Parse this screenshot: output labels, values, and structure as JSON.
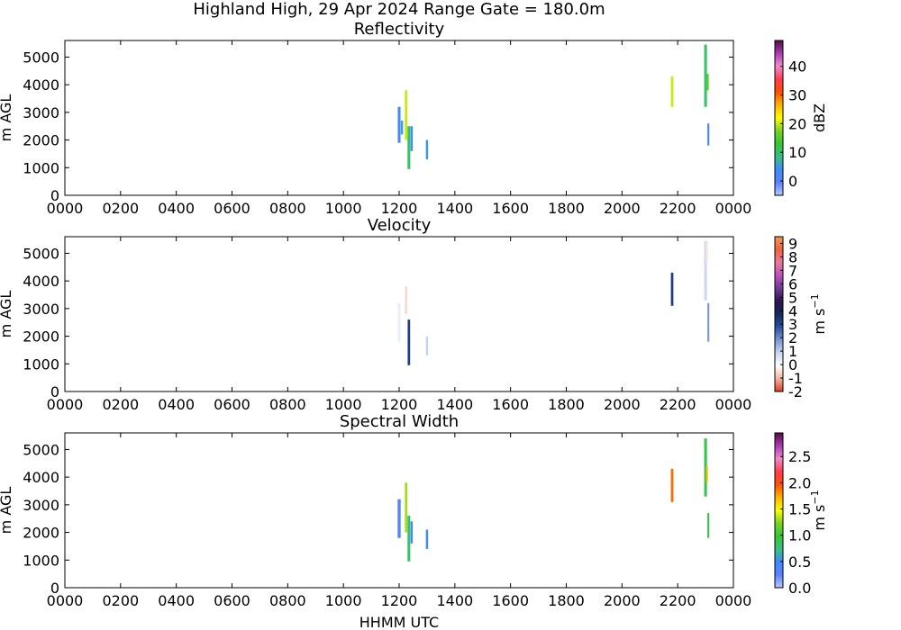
{
  "figure": {
    "title": "Highland High, 29 Apr 2024 Range Gate = 180.0m",
    "xlabel": "HHMM UTC"
  },
  "chart_data": [
    {
      "type": "heatmap",
      "title": "Reflectivity",
      "ylabel": "m AGL",
      "xlim": [
        0,
        24
      ],
      "ylim": [
        0,
        5600
      ],
      "x_ticks": [
        "0000",
        "0200",
        "0400",
        "0600",
        "0800",
        "1000",
        "1200",
        "1400",
        "1600",
        "1800",
        "2000",
        "2200",
        "0000"
      ],
      "y_ticks": [
        0,
        1000,
        2000,
        3000,
        4000,
        5000
      ],
      "colorbar": {
        "label": "dBZ",
        "range": [
          -5,
          49
        ],
        "ticks": [
          "0",
          "10",
          "20",
          "30",
          "40"
        ],
        "tick_values": [
          0,
          10,
          20,
          30,
          40
        ],
        "stops": [
          "#b4c8ff",
          "#5a82ff",
          "#3c8cff",
          "#3cbe82",
          "#32c832",
          "#78d228",
          "#ffff00",
          "#ffb400",
          "#ff5000",
          "#ff3c50",
          "#f08cc8",
          "#aa3cb4",
          "#5a0a46"
        ]
      },
      "echoes": [
        {
          "x": 12.0,
          "y0": 1900,
          "y1": 3200,
          "value": 2,
          "width": 0.1
        },
        {
          "x": 12.1,
          "y0": 2200,
          "y1": 2700,
          "value": 6,
          "width": 0.08
        },
        {
          "x": 12.25,
          "y0": 2000,
          "y1": 3800,
          "value": 20,
          "width": 0.09
        },
        {
          "x": 12.35,
          "y0": 950,
          "y1": 2500,
          "value": 10,
          "width": 0.1
        },
        {
          "x": 12.45,
          "y0": 1600,
          "y1": 2500,
          "value": 4,
          "width": 0.08
        },
        {
          "x": 13.0,
          "y0": 1300,
          "y1": 2000,
          "value": 5,
          "width": 0.08
        },
        {
          "x": 21.8,
          "y0": 3200,
          "y1": 4300,
          "value": 20,
          "width": 0.09
        },
        {
          "x": 23.0,
          "y0": 3200,
          "y1": 5450,
          "value": 10,
          "width": 0.1
        },
        {
          "x": 23.08,
          "y0": 3800,
          "y1": 4400,
          "value": 16,
          "width": 0.07
        },
        {
          "x": 23.1,
          "y0": 1800,
          "y1": 2600,
          "value": 2,
          "width": 0.07
        }
      ]
    },
    {
      "type": "heatmap",
      "title": "Velocity",
      "ylabel": "m s^-1",
      "ylabel_left": "m AGL",
      "xlim": [
        0,
        24
      ],
      "ylim": [
        0,
        5600
      ],
      "x_ticks": [
        "0000",
        "0200",
        "0400",
        "0600",
        "0800",
        "1000",
        "1200",
        "1400",
        "1600",
        "1800",
        "2000",
        "2200",
        "0000"
      ],
      "y_ticks": [
        0,
        1000,
        2000,
        3000,
        4000,
        5000
      ],
      "colorbar": {
        "label": "m s",
        "label_exponent": "−1",
        "range": [
          -2,
          9.5
        ],
        "ticks": [
          "-2",
          "-1",
          "0",
          "1",
          "2",
          "3",
          "4",
          "5",
          "6",
          "7",
          "8",
          "9"
        ],
        "tick_values": [
          -2,
          -1,
          0,
          1,
          2,
          3,
          4,
          5,
          6,
          7,
          8,
          9
        ],
        "stops": [
          "#e03c28",
          "#f5b4a0",
          "#ffffff",
          "#c8d7f0",
          "#7896d2",
          "#2850a0",
          "#14285a",
          "#2d1450",
          "#6e3c96",
          "#be50be",
          "#e678a0",
          "#f0643c",
          "#f0965a"
        ]
      },
      "echoes": [
        {
          "x": 12.0,
          "y0": 1800,
          "y1": 3200,
          "value": 0.3,
          "width": 0.1
        },
        {
          "x": 12.25,
          "y0": 2800,
          "y1": 3800,
          "value": -0.6,
          "width": 0.08
        },
        {
          "x": 12.35,
          "y0": 950,
          "y1": 2600,
          "value": 3.2,
          "width": 0.09
        },
        {
          "x": 13.0,
          "y0": 1300,
          "y1": 2000,
          "value": 0.9,
          "width": 0.08
        },
        {
          "x": 21.8,
          "y0": 3100,
          "y1": 4300,
          "value": 3.2,
          "width": 0.09
        },
        {
          "x": 23.0,
          "y0": 3300,
          "y1": 5450,
          "value": 0.8,
          "width": 0.1
        },
        {
          "x": 23.05,
          "y0": 4700,
          "y1": 5450,
          "value": -0.4,
          "width": 0.08
        },
        {
          "x": 23.1,
          "y0": 1800,
          "y1": 3200,
          "value": 1.8,
          "width": 0.07
        }
      ]
    },
    {
      "type": "heatmap",
      "title": "Spectral Width",
      "ylabel": "m s^-1",
      "ylabel_left": "m AGL",
      "xlim": [
        0,
        24
      ],
      "ylim": [
        0,
        5600
      ],
      "x_ticks": [
        "0000",
        "0200",
        "0400",
        "0600",
        "0800",
        "1000",
        "1200",
        "1400",
        "1600",
        "1800",
        "2000",
        "2200",
        "0000"
      ],
      "y_ticks": [
        0,
        1000,
        2000,
        3000,
        4000,
        5000
      ],
      "colorbar": {
        "label": "m s",
        "label_exponent": "−1",
        "range": [
          0,
          2.95
        ],
        "ticks": [
          "0.0",
          "0.5",
          "1.0",
          "1.5",
          "2.0",
          "2.5"
        ],
        "tick_values": [
          0,
          0.5,
          1.0,
          1.5,
          2.0,
          2.5
        ],
        "stops": [
          "#b4c8ff",
          "#5a82ff",
          "#3c8cff",
          "#3cbe82",
          "#32c832",
          "#78d228",
          "#ffff00",
          "#ffb400",
          "#ff5000",
          "#ff3c50",
          "#f08cc8",
          "#aa3cb4",
          "#5a0a46"
        ]
      },
      "echoes": [
        {
          "x": 12.0,
          "y0": 1800,
          "y1": 3200,
          "value": 0.3,
          "width": 0.11
        },
        {
          "x": 12.25,
          "y0": 2000,
          "y1": 3800,
          "value": 1.3,
          "width": 0.09
        },
        {
          "x": 12.35,
          "y0": 950,
          "y1": 2600,
          "value": 0.8,
          "width": 0.1
        },
        {
          "x": 12.45,
          "y0": 1600,
          "y1": 2400,
          "value": 0.4,
          "width": 0.08
        },
        {
          "x": 13.0,
          "y0": 1400,
          "y1": 2100,
          "value": 0.5,
          "width": 0.08
        },
        {
          "x": 21.8,
          "y0": 3100,
          "y1": 4300,
          "value": 1.9,
          "width": 0.09
        },
        {
          "x": 23.0,
          "y0": 3300,
          "y1": 5400,
          "value": 0.9,
          "width": 0.1
        },
        {
          "x": 23.05,
          "y0": 3800,
          "y1": 4400,
          "value": 1.7,
          "width": 0.07
        },
        {
          "x": 23.1,
          "y0": 1800,
          "y1": 2700,
          "value": 0.9,
          "width": 0.07
        }
      ]
    }
  ]
}
